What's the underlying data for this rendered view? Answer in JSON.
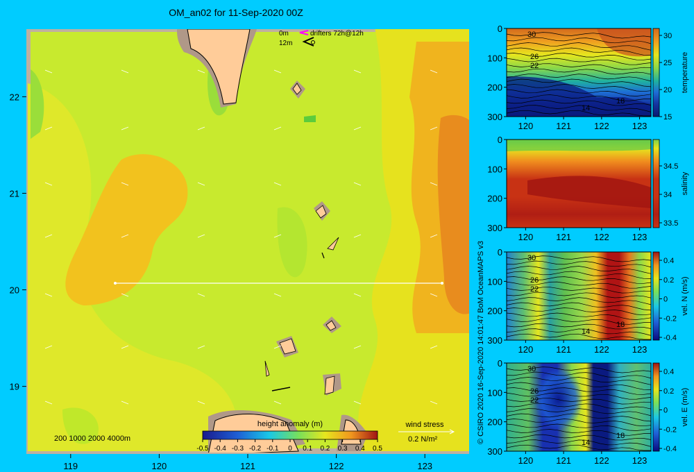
{
  "title": "OM_an02 for 11-Sep-2020 00Z",
  "copyright": "© CSIRO 2020  16-Sep-2020 14:01:47 BoM OceanMAPS v3",
  "map": {
    "xticks": [
      "119",
      "120",
      "121",
      "122",
      "123"
    ],
    "yticks": [
      "22",
      "21",
      "20",
      "19"
    ],
    "depth_legend": "200  1000  2000  4000m",
    "drifter_legend": {
      "d0": "0m",
      "d12": "12m",
      "label": "drifters 72h@12h"
    },
    "colorbar": {
      "label": "height anomaly (m)",
      "ticks": [
        "-0.5",
        "-0.4",
        "-0.3",
        "-0.2",
        "-0.1",
        "0",
        "0.1",
        "0.2",
        "0.3",
        "0.4",
        "0.5"
      ]
    },
    "wind": {
      "label": "wind stress",
      "scale": "0.2 N/m²"
    }
  },
  "chart_data": [
    {
      "type": "heatmap",
      "title": "OM_an02 for 11-Sep-2020 00Z",
      "xlim": [
        118.5,
        123.5
      ],
      "ylim": [
        18.3,
        22.7
      ],
      "colorbar_label": "height anomaly (m)",
      "clim": [
        -0.5,
        0.5
      ],
      "transect": {
        "lat": 20,
        "lon": [
          119.5,
          123.2
        ]
      }
    },
    {
      "type": "heatmap",
      "colorbar_label": "temperature",
      "xlim": [
        119.5,
        123.3
      ],
      "ylim": [
        300,
        0
      ],
      "xticks": [
        "120",
        "121",
        "122",
        "123"
      ],
      "yticks": [
        "0",
        "100",
        "200",
        "300"
      ],
      "cticks": [
        "30",
        "25",
        "20",
        "15"
      ],
      "contour_labels": [
        "30",
        "26",
        "22",
        "14",
        "18"
      ]
    },
    {
      "type": "heatmap",
      "colorbar_label": "salinity",
      "xlim": [
        119.5,
        123.3
      ],
      "ylim": [
        300,
        0
      ],
      "xticks": [
        "120",
        "121",
        "122",
        "123"
      ],
      "yticks": [
        "0",
        "100",
        "200",
        "300"
      ],
      "cticks": [
        "34.5",
        "34",
        "33.5"
      ]
    },
    {
      "type": "heatmap",
      "colorbar_label": "vel. N (m/s)",
      "xlim": [
        119.5,
        123.3
      ],
      "ylim": [
        300,
        0
      ],
      "xticks": [
        "120",
        "121",
        "122",
        "123"
      ],
      "yticks": [
        "0",
        "100",
        "200",
        "300"
      ],
      "cticks": [
        "0.4",
        "0.2",
        "0",
        "-0.2",
        "-0.4"
      ],
      "contour_labels": [
        "30",
        "26",
        "22",
        "14",
        "18"
      ]
    },
    {
      "type": "heatmap",
      "colorbar_label": "vel. E (m/s)",
      "xlim": [
        119.5,
        123.3
      ],
      "ylim": [
        300,
        0
      ],
      "xticks": [
        "120",
        "121",
        "122",
        "123"
      ],
      "yticks": [
        "0",
        "100",
        "200",
        "300"
      ],
      "cticks": [
        "0.4",
        "0.2",
        "0",
        "-0.2",
        "-0.4"
      ],
      "contour_labels": [
        "30",
        "26",
        "22",
        "14",
        "18"
      ]
    }
  ]
}
